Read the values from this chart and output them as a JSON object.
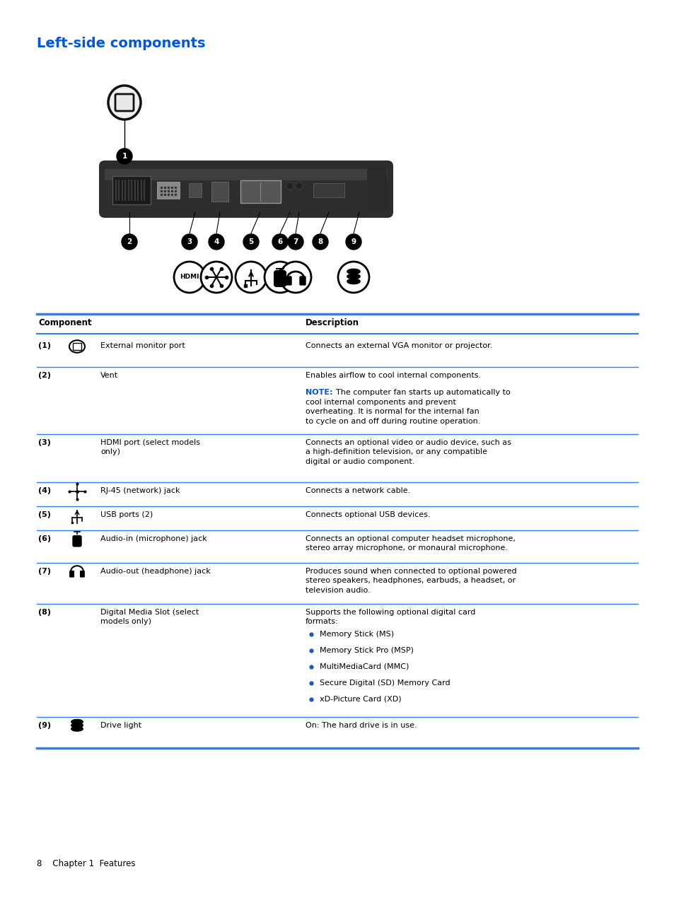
{
  "title": "Left-side components",
  "title_color": "#0057d8",
  "bg_color": "#ffffff",
  "text_color": "#000000",
  "blue_line": "#2a7fff",
  "note_color": "#0057d8",
  "footer": "8    Chapter 1  Features",
  "table_header_col1": "Component",
  "table_header_col2": "Description",
  "rows": [
    {
      "num": "(1)",
      "has_icon": true,
      "icon": "monitor",
      "component": "External monitor port",
      "desc_lines": [
        "Connects an external VGA monitor or projector."
      ],
      "note": null,
      "bullets": null
    },
    {
      "num": "(2)",
      "has_icon": false,
      "icon": null,
      "component": "Vent",
      "desc_lines": [
        "Enables airflow to cool internal components.",
        ""
      ],
      "note": "The computer fan starts up automatically to cool internal components and prevent overheating. It is normal for the internal fan to cycle on and off during routine operation.",
      "bullets": null
    },
    {
      "num": "(3)",
      "has_icon": false,
      "icon": null,
      "component": "HDMI port (select models only)",
      "desc_lines": [
        "Connects an optional video or audio device, such as a high-definition television, or any compatible digital or audio component."
      ],
      "note": null,
      "bullets": null
    },
    {
      "num": "(4)",
      "has_icon": true,
      "icon": "network",
      "component": "RJ-45 (network) jack",
      "desc_lines": [
        "Connects a network cable."
      ],
      "note": null,
      "bullets": null
    },
    {
      "num": "(5)",
      "has_icon": true,
      "icon": "usb",
      "component": "USB ports (2)",
      "desc_lines": [
        "Connects optional USB devices."
      ],
      "note": null,
      "bullets": null
    },
    {
      "num": "(6)",
      "has_icon": true,
      "icon": "mic",
      "component": "Audio-in (microphone) jack",
      "desc_lines": [
        "Connects an optional computer headset microphone, stereo array microphone, or monaural microphone."
      ],
      "note": null,
      "bullets": null
    },
    {
      "num": "(7)",
      "has_icon": true,
      "icon": "headphone",
      "component": "Audio-out (headphone) jack",
      "desc_lines": [
        "Produces sound when connected to optional powered stereo speakers, headphones, earbuds, a headset, or television audio."
      ],
      "note": null,
      "bullets": null
    },
    {
      "num": "(8)",
      "has_icon": false,
      "icon": null,
      "component": "Digital Media Slot (select models only)",
      "desc_lines": [
        "Supports the following optional digital card formats:"
      ],
      "note": null,
      "bullets": [
        "Memory Stick (MS)",
        "Memory Stick Pro (MSP)",
        "MultiMediaCard (MMC)",
        "Secure Digital (SD) Memory Card",
        "xD-Picture Card (XD)"
      ]
    },
    {
      "num": "(9)",
      "has_icon": true,
      "icon": "drive",
      "component": "Drive light",
      "desc_lines": [
        "On: The hard drive is in use."
      ],
      "note": null,
      "bullets": null
    }
  ]
}
